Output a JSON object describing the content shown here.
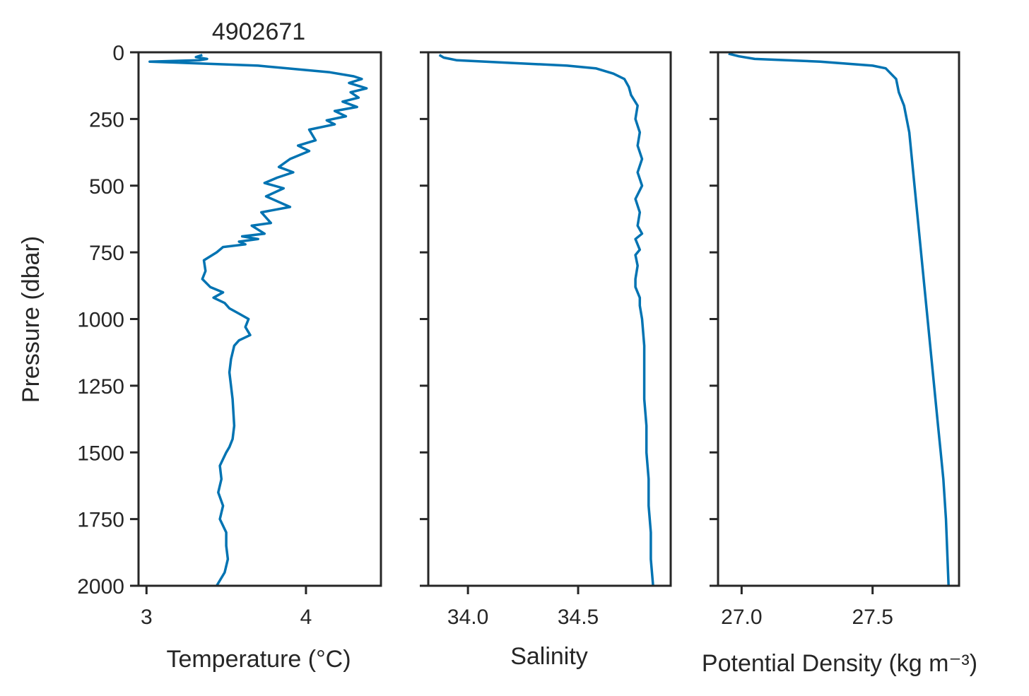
{
  "figure": {
    "title": "4902671",
    "line_color": "#0173b2",
    "axis_color": "#262626"
  },
  "chart_data": [
    {
      "type": "line",
      "title": "4902671",
      "xlabel": "Temperature (°C)",
      "ylabel": "Pressure (dbar)",
      "xlim": [
        2.95,
        4.47
      ],
      "ylim": [
        2000,
        0
      ],
      "xticks": [
        3,
        4
      ],
      "xtick_labels": [
        "3",
        "4"
      ],
      "yticks": [
        0,
        250,
        500,
        750,
        1000,
        1250,
        1500,
        1750,
        2000
      ],
      "ytick_labels": [
        "0",
        "250",
        "500",
        "750",
        "1000",
        "1250",
        "1500",
        "1750",
        "2000"
      ],
      "grid": false,
      "series": [
        {
          "x": [
            3.35,
            3.31,
            3.38,
            3.33,
            3.02,
            3.7,
            4.15,
            4.3,
            4.35,
            4.27,
            4.38,
            4.28,
            4.33,
            4.23,
            4.32,
            4.18,
            4.25,
            4.13,
            4.18,
            4.02,
            4.06,
            3.95,
            4.02,
            3.9,
            3.83,
            3.92,
            3.82,
            3.74,
            3.86,
            3.75,
            3.9,
            3.72,
            3.78,
            3.66,
            3.74,
            3.6,
            3.7,
            3.58,
            3.62,
            3.48,
            3.44,
            3.36,
            3.37,
            3.35,
            3.4,
            3.48,
            3.42,
            3.49,
            3.52,
            3.58,
            3.64,
            3.62,
            3.65,
            3.58,
            3.55,
            3.53,
            3.52,
            3.54,
            3.55,
            3.54,
            3.52,
            3.5,
            3.46,
            3.47,
            3.45,
            3.48,
            3.46,
            3.5,
            3.5,
            3.51,
            3.49,
            3.44
          ],
          "y": [
            10,
            18,
            25,
            30,
            35,
            50,
            75,
            90,
            100,
            115,
            135,
            150,
            170,
            185,
            205,
            220,
            240,
            255,
            270,
            290,
            330,
            350,
            370,
            400,
            430,
            450,
            470,
            490,
            510,
            540,
            580,
            600,
            640,
            650,
            680,
            690,
            700,
            710,
            720,
            730,
            750,
            780,
            820,
            850,
            880,
            900,
            920,
            940,
            960,
            980,
            1000,
            1030,
            1060,
            1080,
            1100,
            1150,
            1200,
            1300,
            1400,
            1450,
            1480,
            1500,
            1550,
            1600,
            1650,
            1700,
            1750,
            1800,
            1850,
            1900,
            1950,
            2000
          ]
        }
      ]
    },
    {
      "type": "line",
      "title": "",
      "xlabel": "Salinity",
      "ylabel": "",
      "xlim": [
        33.82,
        34.92
      ],
      "ylim": [
        2000,
        0
      ],
      "xticks": [
        34.0,
        34.5
      ],
      "xtick_labels": [
        "34.0",
        "34.5"
      ],
      "yticks": [
        0,
        250,
        500,
        750,
        1000,
        1250,
        1500,
        1750,
        2000
      ],
      "ytick_labels": [],
      "grid": false,
      "series": [
        {
          "x": [
            33.87,
            33.89,
            33.95,
            34.2,
            34.45,
            34.58,
            34.66,
            34.71,
            34.73,
            34.74,
            34.77,
            34.76,
            34.78,
            34.77,
            34.79,
            34.77,
            34.79,
            34.76,
            34.78,
            34.77,
            34.79,
            34.76,
            34.78,
            34.76,
            34.77,
            34.76,
            34.76,
            34.78,
            34.78,
            34.79,
            34.8,
            34.8,
            34.8,
            34.81,
            34.81,
            34.82,
            34.82,
            34.83,
            34.83,
            34.84
          ],
          "y": [
            10,
            20,
            30,
            40,
            50,
            60,
            80,
            100,
            130,
            160,
            200,
            250,
            300,
            350,
            400,
            450,
            500,
            550,
            600,
            650,
            680,
            700,
            740,
            760,
            800,
            850,
            880,
            920,
            950,
            1000,
            1100,
            1200,
            1300,
            1400,
            1500,
            1600,
            1700,
            1800,
            1900,
            2000
          ]
        }
      ]
    },
    {
      "type": "line",
      "title": "",
      "xlabel": "Potential Density (kg m⁻³)",
      "ylabel": "",
      "xlim": [
        26.91,
        27.83
      ],
      "ylim": [
        2000,
        0
      ],
      "xticks": [
        27.0,
        27.5
      ],
      "xtick_labels": [
        "27.0",
        "27.5"
      ],
      "yticks": [
        0,
        250,
        500,
        750,
        1000,
        1250,
        1500,
        1750,
        2000
      ],
      "ytick_labels": [],
      "grid": false,
      "series": [
        {
          "x": [
            26.95,
            26.99,
            27.05,
            27.3,
            27.5,
            27.55,
            27.59,
            27.6,
            27.62,
            27.63,
            27.64,
            27.65,
            27.66,
            27.67,
            27.68,
            27.69,
            27.7,
            27.71,
            27.72,
            27.73,
            27.74,
            27.75,
            27.76,
            27.77,
            27.78,
            27.79
          ],
          "y": [
            5,
            15,
            25,
            35,
            50,
            60,
            100,
            150,
            200,
            250,
            300,
            400,
            500,
            600,
            700,
            800,
            900,
            1000,
            1100,
            1200,
            1300,
            1400,
            1500,
            1600,
            1750,
            2000
          ]
        }
      ]
    }
  ]
}
